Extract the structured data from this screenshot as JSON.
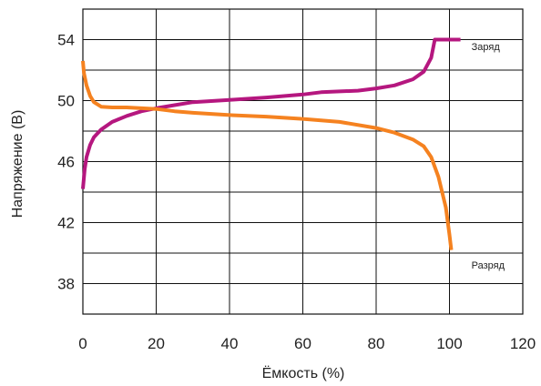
{
  "chart_data": {
    "type": "line",
    "xlabel": "Ёмкость (%)",
    "ylabel": "Напряжение (В)",
    "xlim": [
      0,
      120
    ],
    "ylim": [
      36,
      56
    ],
    "xticks": [
      0,
      20,
      40,
      60,
      80,
      100,
      120
    ],
    "yticks": [
      38,
      42,
      46,
      50,
      54
    ],
    "grid": true,
    "series": [
      {
        "name": "Заряд",
        "color": "#b5177f",
        "points": [
          [
            0,
            44.2
          ],
          [
            0.5,
            45.5
          ],
          [
            1,
            46.3
          ],
          [
            2,
            47.1
          ],
          [
            3,
            47.6
          ],
          [
            5,
            48.1
          ],
          [
            8,
            48.6
          ],
          [
            12,
            49.0
          ],
          [
            16,
            49.3
          ],
          [
            20,
            49.5
          ],
          [
            25,
            49.7
          ],
          [
            30,
            49.9
          ],
          [
            40,
            50.05
          ],
          [
            50,
            50.2
          ],
          [
            60,
            50.4
          ],
          [
            65,
            50.55
          ],
          [
            70,
            50.6
          ],
          [
            75,
            50.65
          ],
          [
            80,
            50.8
          ],
          [
            85,
            51.0
          ],
          [
            90,
            51.4
          ],
          [
            93,
            51.9
          ],
          [
            95,
            52.8
          ],
          [
            96,
            54.0
          ],
          [
            98,
            54.0
          ],
          [
            103,
            54.0
          ]
        ]
      },
      {
        "name": "Разряд",
        "color": "#f58220",
        "points": [
          [
            0,
            52.6
          ],
          [
            0.3,
            51.8
          ],
          [
            1,
            51.0
          ],
          [
            2,
            50.3
          ],
          [
            3,
            49.9
          ],
          [
            5,
            49.6
          ],
          [
            8,
            49.55
          ],
          [
            12,
            49.55
          ],
          [
            16,
            49.5
          ],
          [
            20,
            49.45
          ],
          [
            25,
            49.3
          ],
          [
            30,
            49.2
          ],
          [
            40,
            49.05
          ],
          [
            50,
            48.95
          ],
          [
            60,
            48.8
          ],
          [
            70,
            48.6
          ],
          [
            80,
            48.2
          ],
          [
            85,
            47.9
          ],
          [
            90,
            47.45
          ],
          [
            93,
            47.0
          ],
          [
            95,
            46.3
          ],
          [
            97,
            45.0
          ],
          [
            99,
            43.0
          ],
          [
            100,
            41.2
          ],
          [
            100.5,
            40.2
          ]
        ]
      }
    ],
    "annotations": [
      {
        "text": "Заряд",
        "x": 106,
        "y": 53.3
      },
      {
        "text": "Разряд",
        "x": 106,
        "y": 39.0
      }
    ]
  }
}
